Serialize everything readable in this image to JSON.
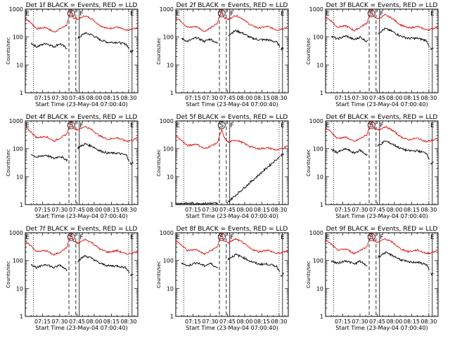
{
  "chart_data": {
    "type": "line",
    "shared": {
      "xlabel": "Start Time (23-May-04 07:00:40)",
      "ylabel": "Counts/sec",
      "x_tick_labels": [
        "07:15",
        "07:30",
        "07:45",
        "08:00",
        "08:15",
        "08:30"
      ],
      "x_tick_minutes": [
        15,
        30,
        45,
        60,
        75,
        90
      ],
      "xlim_minutes": [
        0,
        98
      ],
      "y_scale": "log",
      "ylim": [
        1,
        1000
      ],
      "y_tick_labels": [
        "1",
        "10",
        "100",
        "1000"
      ],
      "series_colors": {
        "black": "#000000",
        "red": "#e01010"
      },
      "marker_text": {
        "E": "E",
        "S": "S",
        "F": "F"
      }
    },
    "panels": [
      {
        "title": "Det 1f BLACK = Events, RED = LLD",
        "letters": [
          "E",
          "S",
          "F",
          "E"
        ],
        "lld": [
          [
            0,
            480
          ],
          [
            5,
            320
          ],
          [
            10,
            200
          ],
          [
            18,
            220
          ],
          [
            25,
            150
          ],
          [
            30,
            195
          ],
          [
            36,
            270
          ],
          [
            40,
            900
          ],
          [
            42,
            480
          ],
          [
            46,
            430
          ],
          [
            52,
            580
          ],
          [
            58,
            450
          ],
          [
            65,
            260
          ],
          [
            72,
            200
          ],
          [
            80,
            230
          ],
          [
            88,
            170
          ],
          [
            93,
            190
          ],
          [
            98,
            220
          ]
        ],
        "events": [
          [
            5,
            60
          ],
          [
            10,
            45
          ],
          [
            18,
            60
          ],
          [
            25,
            45
          ],
          [
            30,
            58
          ],
          [
            36,
            40
          ],
          [
            46,
            90
          ],
          [
            52,
            140
          ],
          [
            58,
            120
          ],
          [
            65,
            80
          ],
          [
            72,
            65
          ],
          [
            80,
            65
          ],
          [
            88,
            55
          ],
          [
            92,
            30
          ],
          [
            94,
            35
          ]
        ]
      },
      {
        "title": "Det 2f BLACK = Events, RED = LLD",
        "letters": [
          "E",
          "S",
          "F",
          "E"
        ],
        "lld": [
          [
            0,
            500
          ],
          [
            5,
            360
          ],
          [
            10,
            220
          ],
          [
            18,
            240
          ],
          [
            25,
            160
          ],
          [
            30,
            210
          ],
          [
            36,
            300
          ],
          [
            40,
            920
          ],
          [
            42,
            500
          ],
          [
            46,
            430
          ],
          [
            52,
            600
          ],
          [
            58,
            460
          ],
          [
            65,
            270
          ],
          [
            72,
            210
          ],
          [
            80,
            240
          ],
          [
            88,
            180
          ],
          [
            93,
            200
          ],
          [
            98,
            230
          ]
        ],
        "events": [
          [
            5,
            90
          ],
          [
            10,
            70
          ],
          [
            18,
            95
          ],
          [
            25,
            70
          ],
          [
            30,
            85
          ],
          [
            36,
            60
          ],
          [
            46,
            120
          ],
          [
            52,
            170
          ],
          [
            58,
            140
          ],
          [
            65,
            95
          ],
          [
            72,
            80
          ],
          [
            80,
            80
          ],
          [
            88,
            65
          ],
          [
            92,
            38
          ],
          [
            94,
            42
          ]
        ]
      },
      {
        "title": "Det 3f BLACK = Events, RED = LLD",
        "letters": [
          "E",
          "S",
          "F",
          "E"
        ],
        "lld": [
          [
            0,
            520
          ],
          [
            5,
            380
          ],
          [
            10,
            230
          ],
          [
            18,
            250
          ],
          [
            25,
            170
          ],
          [
            30,
            220
          ],
          [
            36,
            320
          ],
          [
            40,
            950
          ],
          [
            42,
            520
          ],
          [
            46,
            450
          ],
          [
            52,
            620
          ],
          [
            58,
            470
          ],
          [
            65,
            280
          ],
          [
            72,
            210
          ],
          [
            80,
            240
          ],
          [
            88,
            180
          ],
          [
            93,
            195
          ],
          [
            98,
            240
          ]
        ],
        "events": [
          [
            5,
            110
          ],
          [
            10,
            85
          ],
          [
            18,
            110
          ],
          [
            25,
            80
          ],
          [
            30,
            100
          ],
          [
            36,
            70
          ],
          [
            46,
            140
          ],
          [
            52,
            200
          ],
          [
            58,
            160
          ],
          [
            65,
            110
          ],
          [
            72,
            90
          ],
          [
            80,
            90
          ],
          [
            88,
            75
          ],
          [
            92,
            35
          ],
          [
            94,
            40
          ]
        ]
      },
      {
        "title": "Det 4f BLACK = Events, RED = LLD",
        "letters": [
          "E",
          "S",
          "F",
          "E"
        ],
        "lld": [
          [
            0,
            600
          ],
          [
            5,
            400
          ],
          [
            10,
            250
          ],
          [
            18,
            280
          ],
          [
            25,
            190
          ],
          [
            30,
            240
          ],
          [
            36,
            330
          ],
          [
            40,
            980
          ],
          [
            42,
            560
          ],
          [
            46,
            480
          ],
          [
            52,
            640
          ],
          [
            58,
            480
          ],
          [
            65,
            290
          ],
          [
            72,
            220
          ],
          [
            80,
            250
          ],
          [
            88,
            190
          ],
          [
            93,
            200
          ],
          [
            98,
            250
          ]
        ],
        "events": [
          [
            5,
            65
          ],
          [
            10,
            50
          ],
          [
            18,
            60
          ],
          [
            25,
            45
          ],
          [
            30,
            55
          ],
          [
            36,
            40
          ],
          [
            46,
            110
          ],
          [
            52,
            150
          ],
          [
            58,
            125
          ],
          [
            65,
            85
          ],
          [
            72,
            70
          ],
          [
            80,
            70
          ],
          [
            88,
            60
          ],
          [
            92,
            28
          ],
          [
            94,
            32
          ]
        ]
      },
      {
        "title": "Det 5f BLACK = Events, RED = LLD",
        "letters": [
          "E",
          "S",
          "F",
          "E"
        ],
        "lld": [
          [
            0,
            300
          ],
          [
            5,
            200
          ],
          [
            10,
            130
          ],
          [
            18,
            150
          ],
          [
            25,
            100
          ],
          [
            30,
            125
          ],
          [
            36,
            160
          ],
          [
            40,
            480
          ],
          [
            42,
            260
          ],
          [
            46,
            170
          ],
          [
            52,
            210
          ],
          [
            58,
            170
          ],
          [
            65,
            120
          ],
          [
            72,
            100
          ],
          [
            80,
            110
          ],
          [
            88,
            90
          ],
          [
            93,
            100
          ],
          [
            98,
            140
          ]
        ],
        "events": [
          [
            0,
            1.1
          ],
          [
            40,
            1.1
          ],
          [
            44,
            1.1
          ],
          [
            92,
            60
          ],
          [
            94,
            70
          ]
        ]
      },
      {
        "title": "Det 6f BLACK = Events, RED = LLD",
        "letters": [
          "E",
          "S",
          "F",
          "E"
        ],
        "lld": [
          [
            0,
            560
          ],
          [
            5,
            400
          ],
          [
            10,
            240
          ],
          [
            18,
            260
          ],
          [
            25,
            180
          ],
          [
            30,
            230
          ],
          [
            36,
            320
          ],
          [
            40,
            960
          ],
          [
            42,
            540
          ],
          [
            46,
            470
          ],
          [
            52,
            630
          ],
          [
            58,
            470
          ],
          [
            65,
            280
          ],
          [
            72,
            210
          ],
          [
            80,
            240
          ],
          [
            88,
            180
          ],
          [
            93,
            200
          ],
          [
            98,
            240
          ]
        ],
        "events": [
          [
            5,
            95
          ],
          [
            10,
            75
          ],
          [
            18,
            100
          ],
          [
            25,
            70
          ],
          [
            30,
            90
          ],
          [
            36,
            60
          ],
          [
            46,
            130
          ],
          [
            52,
            190
          ],
          [
            58,
            150
          ],
          [
            65,
            105
          ],
          [
            72,
            85
          ],
          [
            80,
            85
          ],
          [
            88,
            70
          ],
          [
            92,
            30
          ],
          [
            94,
            35
          ]
        ]
      },
      {
        "title": "Det 7f BLACK = Events, RED = LLD",
        "letters": [
          "E",
          "S",
          "F",
          "E"
        ],
        "lld": [
          [
            0,
            480
          ],
          [
            5,
            340
          ],
          [
            10,
            210
          ],
          [
            18,
            230
          ],
          [
            25,
            160
          ],
          [
            30,
            200
          ],
          [
            36,
            290
          ],
          [
            40,
            900
          ],
          [
            42,
            480
          ],
          [
            46,
            420
          ],
          [
            52,
            580
          ],
          [
            58,
            440
          ],
          [
            65,
            260
          ],
          [
            72,
            200
          ],
          [
            80,
            230
          ],
          [
            88,
            170
          ],
          [
            93,
            185
          ],
          [
            98,
            220
          ]
        ],
        "events": [
          [
            5,
            75
          ],
          [
            10,
            55
          ],
          [
            18,
            75
          ],
          [
            25,
            55
          ],
          [
            30,
            70
          ],
          [
            36,
            48
          ],
          [
            46,
            100
          ],
          [
            52,
            150
          ],
          [
            58,
            120
          ],
          [
            65,
            80
          ],
          [
            72,
            65
          ],
          [
            80,
            65
          ],
          [
            88,
            55
          ],
          [
            92,
            30
          ],
          [
            94,
            33
          ]
        ]
      },
      {
        "title": "Det 8f BLACK = Events, RED = LLD",
        "letters": [
          "E",
          "S",
          "F",
          "E"
        ],
        "lld": [
          [
            0,
            520
          ],
          [
            5,
            370
          ],
          [
            10,
            230
          ],
          [
            18,
            250
          ],
          [
            25,
            170
          ],
          [
            30,
            220
          ],
          [
            36,
            310
          ],
          [
            40,
            930
          ],
          [
            42,
            500
          ],
          [
            46,
            440
          ],
          [
            52,
            600
          ],
          [
            58,
            460
          ],
          [
            65,
            270
          ],
          [
            72,
            210
          ],
          [
            80,
            240
          ],
          [
            88,
            180
          ],
          [
            93,
            195
          ],
          [
            98,
            230
          ]
        ],
        "events": [
          [
            5,
            85
          ],
          [
            10,
            65
          ],
          [
            18,
            85
          ],
          [
            25,
            65
          ],
          [
            30,
            80
          ],
          [
            36,
            55
          ],
          [
            46,
            115
          ],
          [
            52,
            165
          ],
          [
            58,
            135
          ],
          [
            65,
            95
          ],
          [
            72,
            75
          ],
          [
            80,
            75
          ],
          [
            88,
            62
          ],
          [
            92,
            30
          ],
          [
            94,
            34
          ]
        ]
      },
      {
        "title": "Det 9f BLACK = Events, RED = LLD",
        "letters": [
          "E",
          "S",
          "F",
          "E"
        ],
        "lld": [
          [
            0,
            540
          ],
          [
            5,
            390
          ],
          [
            10,
            240
          ],
          [
            18,
            260
          ],
          [
            25,
            180
          ],
          [
            30,
            230
          ],
          [
            36,
            320
          ],
          [
            40,
            950
          ],
          [
            42,
            520
          ],
          [
            46,
            450
          ],
          [
            52,
            610
          ],
          [
            58,
            460
          ],
          [
            65,
            270
          ],
          [
            72,
            210
          ],
          [
            80,
            240
          ],
          [
            88,
            180
          ],
          [
            93,
            195
          ],
          [
            98,
            240
          ]
        ],
        "events": [
          [
            5,
            100
          ],
          [
            10,
            80
          ],
          [
            18,
            100
          ],
          [
            25,
            75
          ],
          [
            30,
            95
          ],
          [
            36,
            65
          ],
          [
            46,
            135
          ],
          [
            52,
            195
          ],
          [
            58,
            155
          ],
          [
            65,
            110
          ],
          [
            72,
            88
          ],
          [
            80,
            88
          ],
          [
            88,
            72
          ],
          [
            92,
            32
          ],
          [
            94,
            36
          ]
        ]
      }
    ]
  }
}
